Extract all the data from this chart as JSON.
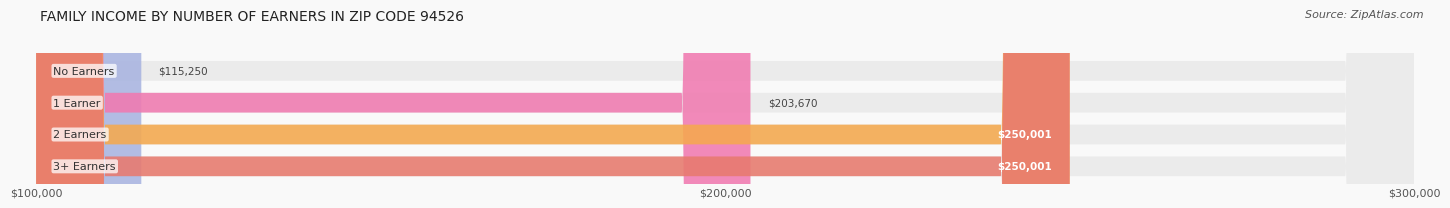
{
  "title": "FAMILY INCOME BY NUMBER OF EARNERS IN ZIP CODE 94526",
  "source": "Source: ZipAtlas.com",
  "categories": [
    "No Earners",
    "1 Earner",
    "2 Earners",
    "3+ Earners"
  ],
  "values": [
    115250,
    203670,
    250001,
    250001
  ],
  "bar_colors": [
    "#a8b4e0",
    "#f07ab0",
    "#f5a94e",
    "#e87a6e"
  ],
  "bar_bg_color": "#ebebeb",
  "value_labels": [
    "$115,250",
    "$203,670",
    "$250,001",
    "$250,001"
  ],
  "label_inside": [
    false,
    false,
    true,
    true
  ],
  "xlim": [
    100000,
    300000
  ],
  "xticks": [
    100000,
    200000,
    300000
  ],
  "xticklabels": [
    "$100,000",
    "$200,000",
    "$300,000"
  ],
  "title_fontsize": 10,
  "source_fontsize": 8,
  "background_color": "#f9f9f9"
}
